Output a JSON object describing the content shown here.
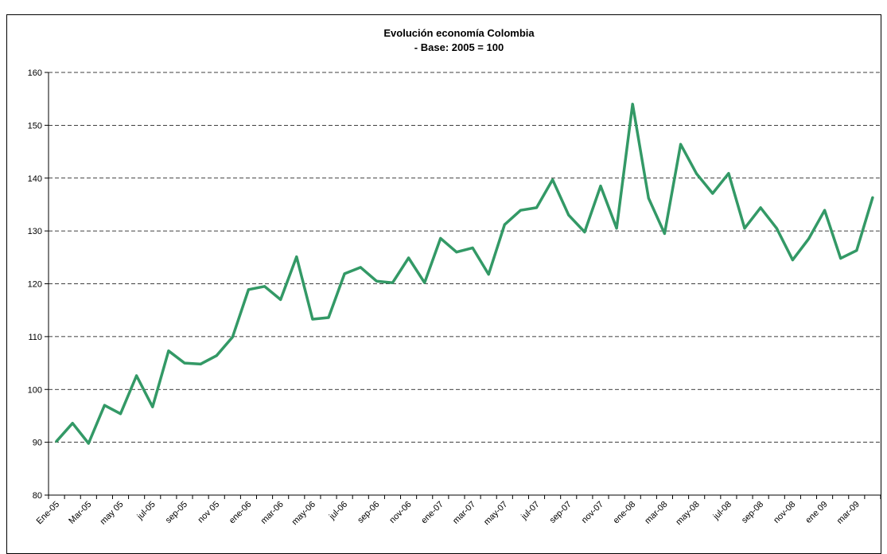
{
  "chart_data": {
    "type": "line",
    "title": "Evolución economía Colombia",
    "subtitle": "- Base: 2005 = 100",
    "xlabel": "",
    "ylabel": "",
    "ylim": [
      80,
      160
    ],
    "yticks": [
      80,
      90,
      100,
      110,
      120,
      130,
      140,
      150,
      160
    ],
    "grid": "horizontal dashed",
    "legend": "none",
    "x_tick_labels": [
      "Ene-05",
      "Mar-05",
      "may 05",
      "jul-05",
      "sep-05",
      "nov 05",
      "ene-06",
      "mar-06",
      "may-06",
      "jul-06",
      "sep-06",
      "nov-06",
      "ene-07",
      "mar-07",
      "may-07",
      "jul-07",
      "sep-07",
      "nov-07",
      "ene-08",
      "mar-08",
      "may-08",
      "jul-08",
      "sep-08",
      "nov-08",
      "ene 09",
      "mar-09"
    ],
    "series": [
      {
        "color": "#339966",
        "values": [
          90.2,
          93.6,
          89.8,
          97.0,
          95.4,
          102.6,
          96.7,
          107.3,
          105.0,
          104.8,
          106.4,
          109.9,
          118.9,
          119.5,
          117.0,
          125.1,
          113.3,
          113.6,
          121.9,
          123.1,
          120.5,
          120.2,
          124.9,
          120.2,
          128.6,
          126.0,
          126.8,
          121.8,
          131.2,
          133.9,
          134.4,
          139.7,
          133.0,
          129.8,
          138.5,
          130.5,
          154.0,
          136.2,
          129.5,
          146.4,
          140.8,
          137.1,
          140.9,
          130.5,
          134.4,
          130.5,
          124.5,
          128.5,
          133.9,
          124.8,
          126.3,
          136.3
        ]
      }
    ]
  }
}
